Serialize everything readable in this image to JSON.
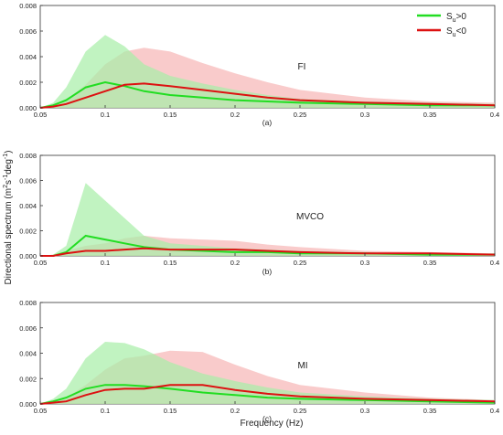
{
  "figure": {
    "ylabel_main": "Directional spectrum (m",
    "ylabel_sup1": "2",
    "ylabel_mid": "s",
    "ylabel_sup2": "-1",
    "ylabel_mid2": "deg",
    "ylabel_sup3": "-1",
    "ylabel_end": ")",
    "xlabel": "Frequency (Hz)"
  },
  "legend": [
    {
      "sym": "S",
      "sub": "u",
      "rel": ">0",
      "color": "#22dd22"
    },
    {
      "sym": "S",
      "sub": "u",
      "rel": "<0",
      "color": "#dd1111"
    }
  ],
  "colors": {
    "green_line": "#22dd22",
    "red_line": "#dd1111",
    "green_fill": "#a6eea6",
    "red_fill": "#f6b5b5"
  },
  "chart_data": [
    {
      "type": "line",
      "title": "FI",
      "caption": "(a)",
      "xlim": [
        0.05,
        0.4
      ],
      "ylim": [
        0,
        0.008
      ],
      "xticks": [
        "0.05",
        "0.1",
        "0.15",
        "0.2",
        "0.25",
        "0.3",
        "0.35",
        "0.4"
      ],
      "yticks": [
        "0.000",
        "0.002",
        "0.004",
        "0.006",
        "0.008"
      ],
      "x": [
        0.05,
        0.06,
        0.07,
        0.085,
        0.1,
        0.115,
        0.13,
        0.15,
        0.175,
        0.2,
        0.225,
        0.25,
        0.3,
        0.35,
        0.4
      ],
      "series": [
        {
          "name": "S_u>0",
          "color": "#22dd22",
          "values": [
            0.0,
            0.0002,
            0.0006,
            0.0016,
            0.002,
            0.0017,
            0.0013,
            0.001,
            0.0008,
            0.0006,
            0.0005,
            0.0004,
            0.0003,
            0.0002,
            0.0002
          ],
          "upper": [
            0.0,
            0.0004,
            0.0016,
            0.0044,
            0.0057,
            0.0048,
            0.0034,
            0.0025,
            0.0019,
            0.0014,
            0.001,
            0.0007,
            0.0005,
            0.0004,
            0.0003
          ]
        },
        {
          "name": "S_u<0",
          "color": "#dd1111",
          "values": [
            0.0,
            0.0001,
            0.0003,
            0.0008,
            0.0013,
            0.0018,
            0.0019,
            0.0017,
            0.0014,
            0.0011,
            0.0008,
            0.0006,
            0.0004,
            0.0003,
            0.0002
          ],
          "upper": [
            0.0,
            0.0002,
            0.0006,
            0.0018,
            0.0034,
            0.0044,
            0.0047,
            0.0044,
            0.0035,
            0.0027,
            0.002,
            0.0014,
            0.0008,
            0.0005,
            0.0004
          ]
        }
      ]
    },
    {
      "type": "line",
      "title": "MVCO",
      "caption": "(b)",
      "xlim": [
        0.05,
        0.4
      ],
      "ylim": [
        0,
        0.008
      ],
      "xticks": [
        "0.05",
        "0.1",
        "0.15",
        "0.2",
        "0.25",
        "0.3",
        "0.35",
        "0.4"
      ],
      "yticks": [
        "0.000",
        "0.002",
        "0.004",
        "0.006",
        "0.008"
      ],
      "x": [
        0.05,
        0.06,
        0.07,
        0.085,
        0.1,
        0.115,
        0.13,
        0.15,
        0.175,
        0.2,
        0.225,
        0.25,
        0.3,
        0.35,
        0.4
      ],
      "series": [
        {
          "name": "S_u>0",
          "color": "#22dd22",
          "values": [
            0.0,
            0.0,
            0.0003,
            0.0016,
            0.0013,
            0.001,
            0.0007,
            0.0005,
            0.0004,
            0.0003,
            0.0003,
            0.0002,
            0.0002,
            0.0001,
            0.0001
          ],
          "upper": [
            0.0,
            0.0001,
            0.0008,
            0.0058,
            0.0044,
            0.003,
            0.0016,
            0.001,
            0.0008,
            0.0006,
            0.0005,
            0.0004,
            0.0003,
            0.0002,
            0.0002
          ]
        },
        {
          "name": "S_u<0",
          "color": "#dd1111",
          "values": [
            0.0,
            0.0,
            0.0002,
            0.0004,
            0.0004,
            0.0005,
            0.0006,
            0.0005,
            0.0005,
            0.0005,
            0.0004,
            0.0003,
            0.0002,
            0.0002,
            0.0001
          ],
          "upper": [
            0.0,
            0.0001,
            0.0004,
            0.0008,
            0.001,
            0.0014,
            0.0016,
            0.0014,
            0.0013,
            0.0012,
            0.0009,
            0.0007,
            0.0004,
            0.0003,
            0.0002
          ]
        }
      ]
    },
    {
      "type": "line",
      "title": "MI",
      "caption": "(c)",
      "xlim": [
        0.05,
        0.4
      ],
      "ylim": [
        0,
        0.008
      ],
      "xticks": [
        "0.05",
        "0.1",
        "0.15",
        "0.2",
        "0.25",
        "0.3",
        "0.35",
        "0.4"
      ],
      "yticks": [
        "0.000",
        "0.002",
        "0.004",
        "0.006",
        "0.008"
      ],
      "x": [
        0.05,
        0.06,
        0.07,
        0.085,
        0.1,
        0.115,
        0.13,
        0.15,
        0.175,
        0.2,
        0.225,
        0.25,
        0.3,
        0.35,
        0.4
      ],
      "series": [
        {
          "name": "S_u>0",
          "color": "#22dd22",
          "values": [
            0.0,
            0.0002,
            0.0005,
            0.0012,
            0.0015,
            0.0015,
            0.0014,
            0.0012,
            0.0009,
            0.0007,
            0.0005,
            0.0004,
            0.0003,
            0.0002,
            0.0001
          ],
          "upper": [
            0.0,
            0.0004,
            0.0012,
            0.0036,
            0.0049,
            0.0048,
            0.0043,
            0.0033,
            0.0024,
            0.0018,
            0.0013,
            0.0009,
            0.0006,
            0.0004,
            0.0003
          ]
        },
        {
          "name": "S_u<0",
          "color": "#dd1111",
          "values": [
            0.0,
            0.0001,
            0.0002,
            0.0007,
            0.0011,
            0.0012,
            0.0012,
            0.0015,
            0.0015,
            0.0011,
            0.0008,
            0.0006,
            0.0004,
            0.0003,
            0.0002
          ],
          "upper": [
            0.0,
            0.0002,
            0.0005,
            0.0015,
            0.0027,
            0.0036,
            0.0038,
            0.0042,
            0.0041,
            0.0031,
            0.0022,
            0.0015,
            0.0009,
            0.0005,
            0.0003
          ]
        }
      ]
    }
  ]
}
